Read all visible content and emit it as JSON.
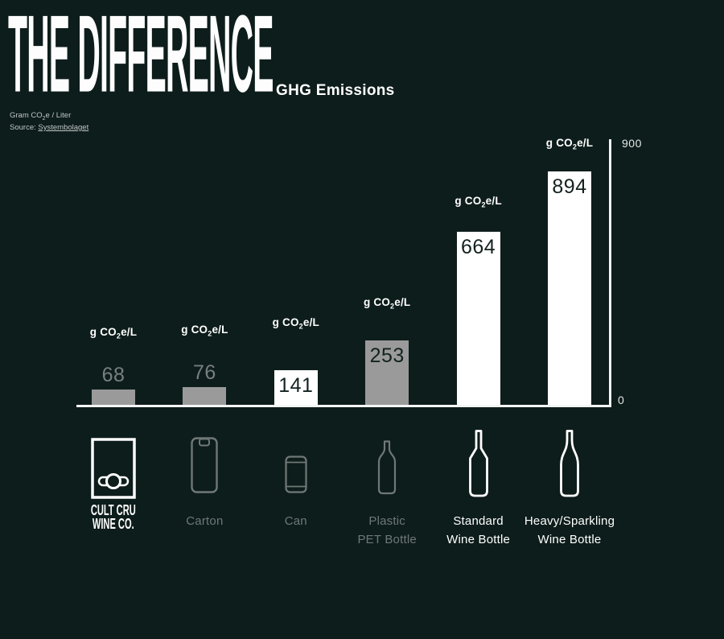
{
  "colors": {
    "background": "#0d1d1b",
    "text": "#ffffff",
    "muted": "#6f7877",
    "muted_value": "#78807f",
    "value_dark": "#13221f",
    "bar_gray": "#9a9a9a",
    "bar_white": "#ffffff",
    "axis": "#f4f6f5"
  },
  "header": {
    "title": "THE DIFFERENCE",
    "subtitle": "GHG Emissions",
    "unit_note": {
      "pre": "Gram CO",
      "sub": "2",
      "post": "e / Liter"
    },
    "source_label": "Source:",
    "source_link": "Systembolaget"
  },
  "chart_data": {
    "type": "bar",
    "title": "GHG Emissions",
    "ylabel": "Gram CO2e / Liter",
    "ylim": [
      0,
      900
    ],
    "grid": false,
    "y_axis": {
      "max_label": "900",
      "min_label": "0",
      "position": "right"
    },
    "unit": {
      "pre": "g CO",
      "sub": "2",
      "post": "e/L"
    },
    "categories": [
      "Cult Cru Wine Co. Box",
      "Carton",
      "Can",
      "Plastic PET Bottle",
      "Standard Wine Bottle",
      "Heavy/Sparkling Wine Bottle"
    ],
    "values": [
      68,
      76,
      141,
      253,
      664,
      894
    ],
    "items": [
      {
        "id": "cult-cru-box",
        "label_lines": [
          "CULT CRU",
          "WINE CO."
        ],
        "brand": true,
        "value": 68,
        "bar": "gray",
        "value_placement": "above",
        "icon": "box",
        "tone": "bright"
      },
      {
        "id": "carton",
        "label_lines": [
          "Carton"
        ],
        "brand": false,
        "value": 76,
        "bar": "gray",
        "value_placement": "above",
        "icon": "carton",
        "tone": "muted"
      },
      {
        "id": "can",
        "label_lines": [
          "Can"
        ],
        "brand": false,
        "value": 141,
        "bar": "white",
        "value_placement": "inside",
        "icon": "can",
        "tone": "muted"
      },
      {
        "id": "pet-bottle",
        "label_lines": [
          "Plastic",
          "PET Bottle"
        ],
        "brand": false,
        "value": 253,
        "bar": "gray",
        "value_placement": "inside",
        "icon": "pet",
        "tone": "muted"
      },
      {
        "id": "standard-wine-bottle",
        "label_lines": [
          "Standard",
          "Wine Bottle"
        ],
        "brand": false,
        "value": 664,
        "bar": "white",
        "value_placement": "inside",
        "icon": "wine",
        "tone": "bright"
      },
      {
        "id": "sparkling-wine-bottle",
        "label_lines": [
          "Heavy/Sparkling",
          "Wine Bottle"
        ],
        "brand": false,
        "value": 894,
        "bar": "white",
        "value_placement": "inside",
        "icon": "sparkling",
        "tone": "bright"
      }
    ]
  }
}
